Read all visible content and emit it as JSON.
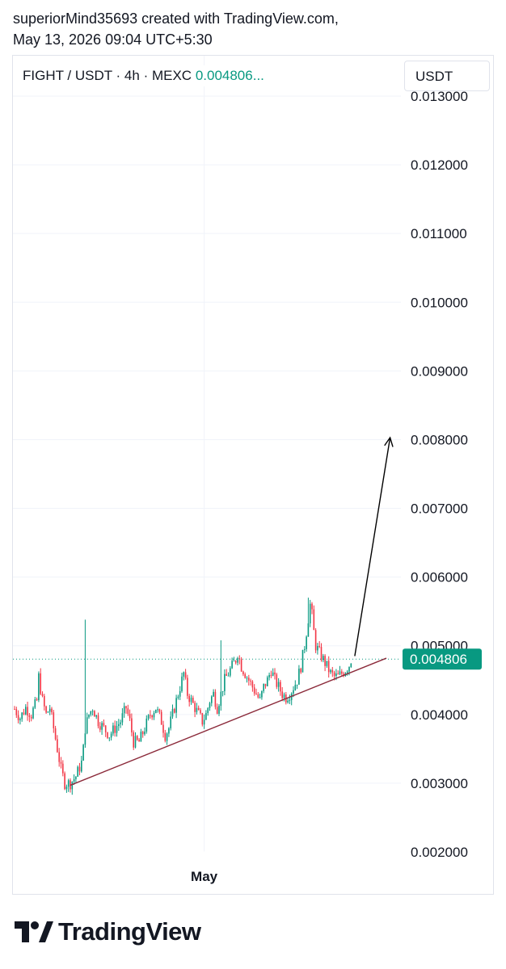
{
  "header": {
    "line1": "superiorMind35693 created with TradingView.com,",
    "line2": "May 13, 2026 09:04 UTC+5:30"
  },
  "symbol": {
    "name": "FIGHT / USDT · 4h · MEXC",
    "last_price": "0.004806..."
  },
  "currency_button": "USDT",
  "footer": {
    "brand": "TradingView",
    "logo_icon": "tradingview-logo-icon"
  },
  "colors": {
    "up": "#089981",
    "down": "#f23645",
    "trendline": "#8b2a3a",
    "arrow": "#000000",
    "last_price": "#089981"
  },
  "chart_data": {
    "type": "candlestick",
    "y_scale": "linear",
    "ylim": [
      0.0018,
      0.0131
    ],
    "y_ticks": [
      "0.013000",
      "0.012000",
      "0.011000",
      "0.010000",
      "0.009000",
      "0.008000",
      "0.007000",
      "0.006000",
      "0.005000",
      "0.004000",
      "0.003000",
      "0.002000"
    ],
    "y_tick_values": [
      0.013,
      0.012,
      0.011,
      0.01,
      0.009,
      0.008,
      0.007,
      0.006,
      0.005,
      0.004,
      0.003,
      0.002
    ],
    "x_ticks": [
      "May"
    ],
    "x_tick_index": 102,
    "last_price_label": "0.004806",
    "last_price_value": 0.004806,
    "grid": true,
    "waypoints": [
      [
        0,
        0.00408
      ],
      [
        3,
        0.00395
      ],
      [
        6,
        0.0041
      ],
      [
        9,
        0.004
      ],
      [
        12,
        0.0042
      ],
      [
        13,
        0.00455
      ],
      [
        15,
        0.0042
      ],
      [
        17,
        0.004
      ],
      [
        19,
        0.0041
      ],
      [
        21,
        0.0038
      ],
      [
        23,
        0.0035
      ],
      [
        25,
        0.0032
      ],
      [
        27,
        0.003
      ],
      [
        30,
        0.003
      ],
      [
        33,
        0.0031
      ],
      [
        36,
        0.0033
      ],
      [
        37,
        0.0035
      ],
      [
        38,
        0.0038
      ],
      [
        40,
        0.004
      ],
      [
        42,
        0.0041
      ],
      [
        45,
        0.0039
      ],
      [
        48,
        0.0038
      ],
      [
        51,
        0.0037
      ],
      [
        54,
        0.0038
      ],
      [
        57,
        0.0039
      ],
      [
        60,
        0.0041
      ],
      [
        62,
        0.0039
      ],
      [
        64,
        0.0036
      ],
      [
        67,
        0.0036
      ],
      [
        70,
        0.0038
      ],
      [
        73,
        0.004
      ],
      [
        76,
        0.0041
      ],
      [
        79,
        0.0039
      ],
      [
        81,
        0.0037
      ],
      [
        83,
        0.0038
      ],
      [
        86,
        0.0041
      ],
      [
        89,
        0.0044
      ],
      [
        91,
        0.0046
      ],
      [
        93,
        0.0043
      ],
      [
        95,
        0.0042
      ],
      [
        97,
        0.0041
      ],
      [
        99,
        0.004
      ],
      [
        101,
        0.0039
      ],
      [
        103,
        0.004
      ],
      [
        105,
        0.0042
      ],
      [
        107,
        0.0043
      ],
      [
        109,
        0.0041
      ],
      [
        111,
        0.0043
      ],
      [
        113,
        0.0045
      ],
      [
        115,
        0.0046
      ],
      [
        117,
        0.0047
      ],
      [
        119,
        0.0048
      ],
      [
        120,
        0.0049
      ],
      [
        122,
        0.0047
      ],
      [
        124,
        0.0046
      ],
      [
        126,
        0.0045
      ],
      [
        128,
        0.0044
      ],
      [
        130,
        0.0043
      ],
      [
        132,
        0.0042
      ],
      [
        134,
        0.0044
      ],
      [
        136,
        0.0045
      ],
      [
        138,
        0.00465
      ],
      [
        140,
        0.0045
      ],
      [
        142,
        0.0044
      ],
      [
        144,
        0.0043
      ],
      [
        146,
        0.00425
      ],
      [
        148,
        0.0043
      ],
      [
        150,
        0.0044
      ],
      [
        152,
        0.0045
      ],
      [
        154,
        0.0047
      ],
      [
        156,
        0.005
      ],
      [
        158,
        0.0054
      ],
      [
        159,
        0.0056
      ],
      [
        160,
        0.00545
      ],
      [
        161,
        0.0052
      ],
      [
        162,
        0.005
      ],
      [
        164,
        0.0049
      ],
      [
        166,
        0.0048
      ],
      [
        168,
        0.0047
      ],
      [
        170,
        0.0046
      ],
      [
        172,
        0.00455
      ],
      [
        174,
        0.00455
      ],
      [
        176,
        0.0046
      ],
      [
        178,
        0.00465
      ],
      [
        180,
        0.00472
      ],
      [
        181,
        0.0048
      ]
    ],
    "spikes": [
      {
        "index": 38,
        "high": 0.00538
      },
      {
        "index": 158,
        "high": 0.0057
      },
      {
        "index": 111,
        "high": 0.00508
      },
      {
        "index": 27,
        "low": 0.0029
      }
    ],
    "bar_count": 182,
    "trendline": {
      "start": [
        30,
        0.00297
      ],
      "end": [
        200,
        0.00482
      ]
    },
    "arrow": {
      "start": [
        183,
        0.00485
      ],
      "end": [
        202,
        0.00803
      ]
    },
    "total_slots": 212
  }
}
